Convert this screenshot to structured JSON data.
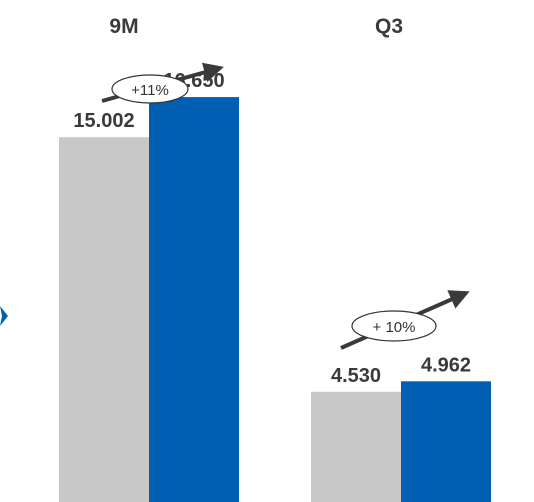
{
  "chart_data": {
    "type": "bar",
    "title": "",
    "xlabel": "",
    "ylabel": "",
    "ylim": [
      0,
      19000
    ],
    "grid": false,
    "groups": [
      {
        "title": "9M",
        "growth": "+11%",
        "bars": [
          {
            "value": 15002,
            "label": "15.002",
            "color": "#c8c8c8"
          },
          {
            "value": 16650,
            "label": "16.650",
            "color": "#005fb1"
          }
        ]
      },
      {
        "title": "Q3",
        "growth": "+ 10%",
        "bars": [
          {
            "value": 4530,
            "label": "4.530",
            "color": "#c8c8c8"
          },
          {
            "value": 4962,
            "label": "4.962",
            "color": "#005fb1"
          }
        ]
      }
    ],
    "arrow_color": "#3a3a3a",
    "accent_color": "#005fb1"
  }
}
